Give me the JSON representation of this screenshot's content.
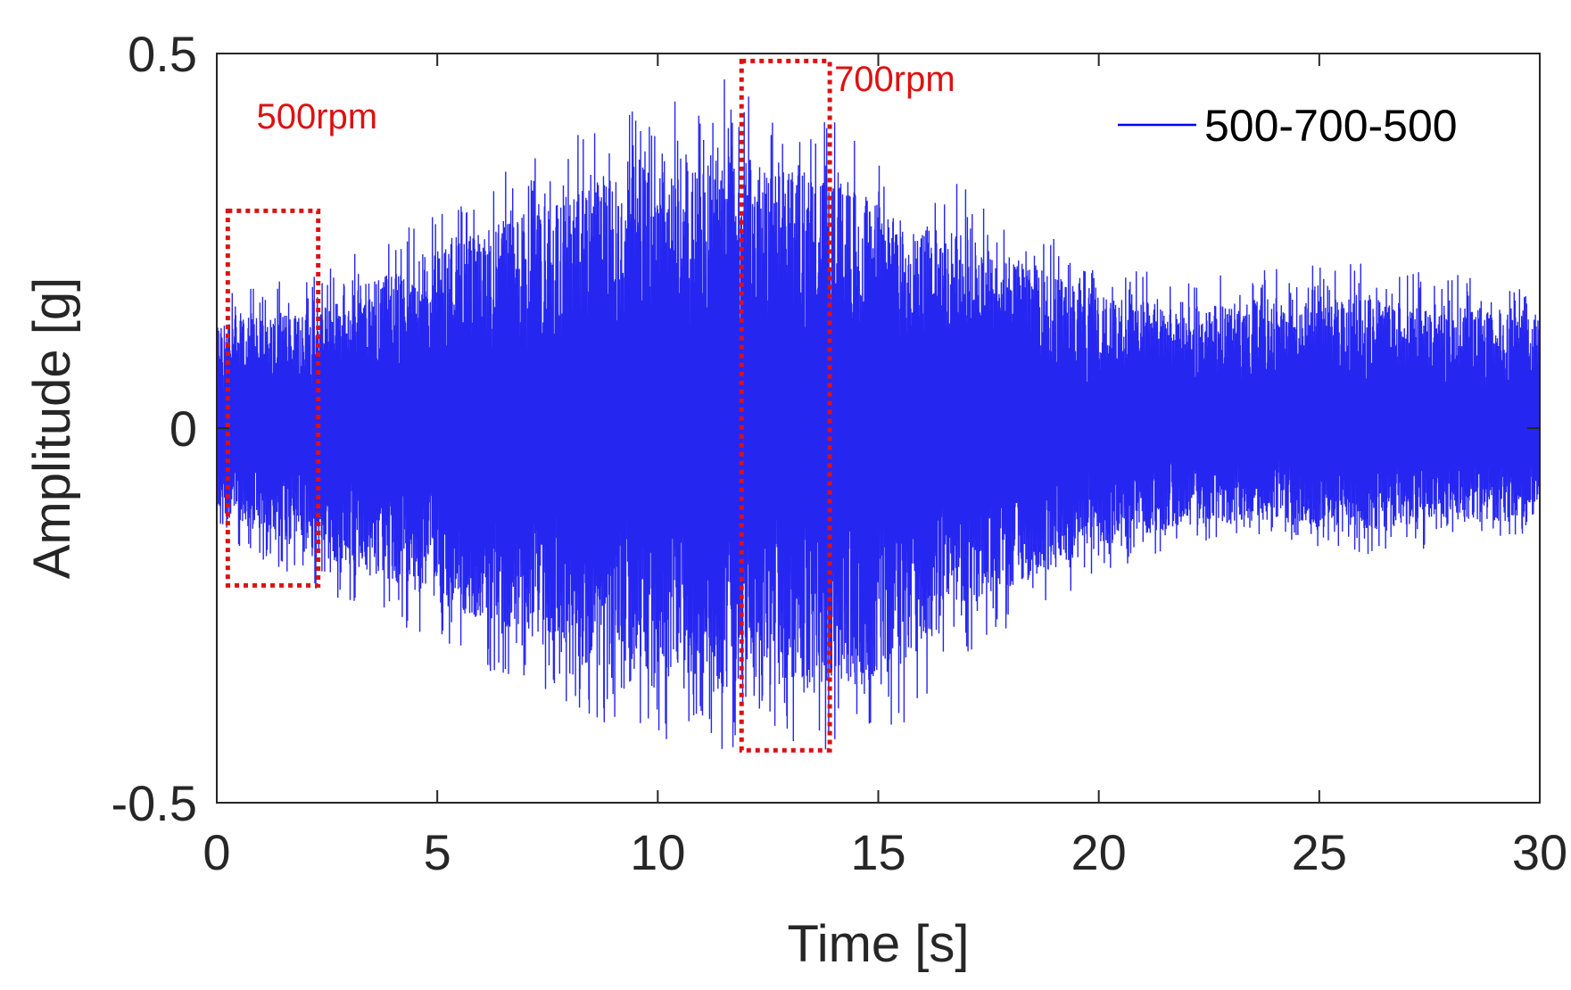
{
  "chart_data": {
    "type": "line",
    "title": "",
    "xlabel": "Time [s]",
    "ylabel": "Amplitude [g]",
    "xlim": [
      0,
      30
    ],
    "ylim": [
      -0.5,
      0.5
    ],
    "xticks": [
      0,
      5,
      10,
      15,
      20,
      25,
      30
    ],
    "xtick_labels": [
      "0",
      "5",
      "10",
      "15",
      "20",
      "25",
      "30"
    ],
    "yticks": [
      -0.5,
      0,
      0.5
    ],
    "ytick_labels": [
      "-0.5",
      "0",
      "0.5"
    ],
    "grid": false,
    "legend_position": "top-right",
    "series": [
      {
        "name": "500-700-500",
        "color": "#0000ee",
        "envelope": {
          "description": "dense vibration signal; approximate upper/lower peak envelope in g",
          "t": [
            0,
            2,
            4,
            6,
            8,
            9.5,
            10.5,
            11.5,
            12.5,
            13.5,
            14.5,
            15.5,
            16.5,
            17.5,
            18.5,
            20,
            22,
            24,
            26,
            28,
            30
          ],
          "upper": [
            0.19,
            0.2,
            0.26,
            0.33,
            0.39,
            0.44,
            0.46,
            0.47,
            0.44,
            0.43,
            0.4,
            0.35,
            0.34,
            0.3,
            0.27,
            0.22,
            0.2,
            0.22,
            0.22,
            0.21,
            0.18
          ],
          "lower": [
            -0.14,
            -0.21,
            -0.26,
            -0.32,
            -0.38,
            -0.43,
            -0.41,
            -0.44,
            -0.41,
            -0.43,
            -0.43,
            -0.4,
            -0.33,
            -0.28,
            -0.25,
            -0.2,
            -0.16,
            -0.16,
            -0.17,
            -0.16,
            -0.14
          ]
        }
      }
    ],
    "annotations": [
      {
        "label": "500rpm",
        "x_range": [
          0.25,
          2.3
        ],
        "y_range": [
          -0.21,
          0.29
        ],
        "label_x": 0.9,
        "label_y": 0.4,
        "color": "#dd1111"
      },
      {
        "label": "700rpm",
        "x_range": [
          11.9,
          13.9
        ],
        "y_range": [
          -0.43,
          0.49
        ],
        "label_x": 14.0,
        "label_y": 0.45,
        "color": "#dd1111"
      }
    ]
  }
}
